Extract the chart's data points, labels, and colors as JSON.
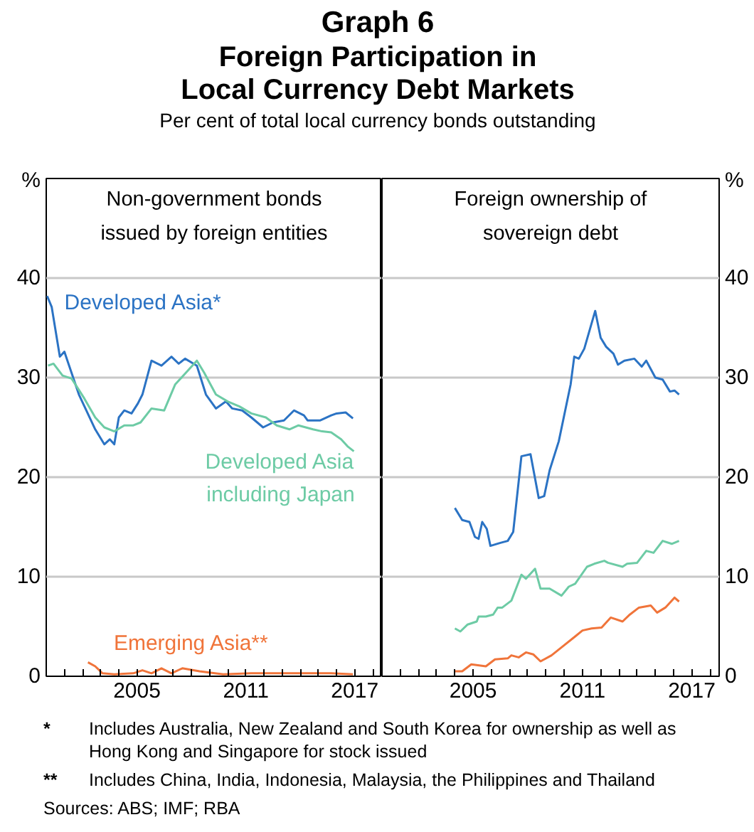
{
  "chart_data": [
    {
      "type": "other",
      "title": "Graph 6",
      "subtitle": "Foreign Participation in Local Currency Debt Markets",
      "annotations": [
        "Per cent of total local currency bonds outstanding",
        "* Includes Australia, New Zealand and South Korea for ownership as well as Hong Kong and Singapore for stock issued",
        "** Includes China, India, Indonesia, Malaysia, the Philippines and Thailand",
        "Sources: ABS; IMF; RBA"
      ]
    },
    {
      "type": "line",
      "title": "Non-government bonds issued by foreign entities",
      "xlim": [
        2000,
        2018.5
      ],
      "ylim": [
        0,
        50
      ],
      "yticks": [
        0,
        10,
        20,
        30,
        40,
        {
          "value": 50,
          "label": "%"
        }
      ],
      "xticks": [
        {
          "value": 2001,
          "label": null
        },
        {
          "value": 2002,
          "label": null
        },
        {
          "value": 2003,
          "label": null
        },
        {
          "value": 2004,
          "label": null
        },
        2005,
        {
          "value": 2006,
          "label": null
        },
        {
          "value": 2007,
          "label": null
        },
        {
          "value": 2008,
          "label": null
        },
        {
          "value": 2009,
          "label": null
        },
        {
          "value": 2010,
          "label": null
        },
        2011,
        {
          "value": 2012,
          "label": null
        },
        {
          "value": 2013,
          "label": null
        },
        {
          "value": 2014,
          "label": null
        },
        {
          "value": 2015,
          "label": null
        },
        {
          "value": 2016,
          "label": null
        },
        2017,
        {
          "value": 2018,
          "label": null
        }
      ],
      "grid": "y",
      "series": [
        {
          "name": "Developed Asia*",
          "color": "#2b73c4",
          "x": [
            2000.05,
            2000.3,
            2000.75,
            2001.0,
            2001.8,
            2002.7,
            2003.2,
            2003.5,
            2003.75,
            2004.0,
            2004.3,
            2004.7,
            2005.05,
            2005.3,
            2005.8,
            2006.35,
            2006.9,
            2007.3,
            2007.65,
            2008.3,
            2008.8,
            2009.35,
            2009.9,
            2010.25,
            2010.8,
            2011.3,
            2011.95,
            2012.5,
            2013.1,
            2013.65,
            2014.2,
            2014.4,
            2015.1,
            2015.7,
            2016.0,
            2016.5,
            2016.9
          ],
          "values": [
            38.2,
            37.1,
            32.1,
            32.6,
            28.3,
            24.8,
            23.3,
            23.8,
            23.3,
            26.0,
            26.7,
            26.4,
            27.4,
            28.3,
            31.7,
            31.2,
            32.1,
            31.4,
            31.9,
            31.2,
            28.3,
            26.9,
            27.6,
            26.9,
            26.7,
            26.0,
            25.0,
            25.5,
            25.7,
            26.7,
            26.2,
            25.7,
            25.7,
            26.2,
            26.4,
            26.5,
            25.9
          ]
        },
        {
          "name": "Developed Asia including Japan",
          "color": "#6dcba5",
          "x": [
            2000.1,
            2000.4,
            2000.9,
            2001.4,
            2002.1,
            2002.7,
            2003.2,
            2003.75,
            2004.3,
            2004.8,
            2005.2,
            2005.8,
            2006.5,
            2007.1,
            2007.8,
            2008.3,
            2008.7,
            2009.35,
            2010.0,
            2010.65,
            2011.3,
            2012.1,
            2012.7,
            2013.4,
            2013.9,
            2014.7,
            2015.2,
            2015.7,
            2016.25,
            2016.6,
            2016.95
          ],
          "values": [
            31.2,
            31.4,
            30.2,
            29.9,
            27.9,
            26.0,
            25.0,
            24.6,
            25.2,
            25.2,
            25.5,
            26.9,
            26.7,
            29.3,
            30.7,
            31.7,
            30.5,
            28.3,
            27.6,
            27.1,
            26.4,
            26.0,
            25.2,
            24.8,
            25.2,
            24.8,
            24.6,
            24.5,
            23.8,
            23.1,
            22.6
          ]
        },
        {
          "name": "Emerging Asia**",
          "color": "#f0743a",
          "x": [
            2002.3,
            2002.7,
            2003.1,
            2003.75,
            2004.8,
            2005.3,
            2005.8,
            2006.35,
            2006.9,
            2007.5,
            2008.45,
            2009.75,
            2011.3,
            2013.1,
            2014.4,
            2015.7,
            2016.9
          ],
          "values": [
            1.4,
            1.0,
            0.3,
            0.2,
            0.3,
            0.6,
            0.3,
            0.8,
            0.3,
            0.8,
            0.5,
            0.2,
            0.3,
            0.3,
            0.3,
            0.3,
            0.2
          ]
        }
      ]
    },
    {
      "type": "line",
      "title": "Foreign ownership of sovereign debt",
      "xlim": [
        2000,
        2018.5
      ],
      "ylim": [
        0,
        50
      ],
      "yticks": [
        0,
        10,
        20,
        30,
        40,
        {
          "value": 50,
          "label": "%"
        }
      ],
      "xticks": [
        {
          "value": 2001,
          "label": null
        },
        {
          "value": 2002,
          "label": null
        },
        {
          "value": 2003,
          "label": null
        },
        {
          "value": 2004,
          "label": null
        },
        2005,
        {
          "value": 2006,
          "label": null
        },
        {
          "value": 2007,
          "label": null
        },
        {
          "value": 2008,
          "label": null
        },
        {
          "value": 2009,
          "label": null
        },
        {
          "value": 2010,
          "label": null
        },
        2011,
        {
          "value": 2012,
          "label": null
        },
        {
          "value": 2013,
          "label": null
        },
        {
          "value": 2014,
          "label": null
        },
        {
          "value": 2015,
          "label": null
        },
        {
          "value": 2016,
          "label": null
        },
        2017,
        {
          "value": 2018,
          "label": null
        }
      ],
      "grid": "y",
      "series": [
        {
          "color": "#2b73c4",
          "x": [
            2004.0,
            2004.4,
            2004.8,
            2005.1,
            2005.3,
            2005.5,
            2005.75,
            2005.95,
            2006.5,
            2006.9,
            2007.2,
            2007.65,
            2008.15,
            2008.6,
            2008.9,
            2009.2,
            2009.7,
            2010.35,
            2010.55,
            2010.8,
            2011.1,
            2011.7,
            2012.0,
            2012.3,
            2012.7,
            2012.95,
            2013.3,
            2013.85,
            2014.25,
            2014.5,
            2015.0,
            2015.4,
            2015.8,
            2016.05,
            2016.3
          ],
          "values": [
            16.9,
            15.7,
            15.5,
            14.0,
            13.8,
            15.5,
            14.8,
            13.1,
            13.4,
            13.6,
            14.5,
            22.1,
            22.3,
            17.9,
            18.1,
            20.7,
            23.6,
            29.3,
            32.1,
            31.9,
            32.9,
            36.7,
            34.0,
            33.1,
            32.4,
            31.3,
            31.7,
            31.9,
            31.1,
            31.7,
            30.0,
            29.8,
            28.6,
            28.7,
            28.3
          ]
        },
        {
          "color": "#6dcba5",
          "x": [
            2004.0,
            2004.3,
            2004.7,
            2005.2,
            2005.3,
            2005.7,
            2006.1,
            2006.35,
            2006.6,
            2007.1,
            2007.65,
            2007.9,
            2008.4,
            2008.7,
            2009.2,
            2009.85,
            2010.25,
            2010.6,
            2011.25,
            2011.65,
            2012.2,
            2012.4,
            2013.2,
            2013.45,
            2014.0,
            2014.5,
            2014.9,
            2015.4,
            2015.9,
            2016.3
          ],
          "values": [
            4.8,
            4.5,
            5.2,
            5.5,
            6.0,
            6.0,
            6.2,
            6.9,
            6.9,
            7.6,
            10.2,
            9.8,
            10.8,
            8.8,
            8.8,
            8.1,
            9.0,
            9.3,
            11.0,
            11.3,
            11.6,
            11.4,
            11.0,
            11.3,
            11.4,
            12.6,
            12.4,
            13.6,
            13.3,
            13.6
          ]
        },
        {
          "color": "#f0743a",
          "x": [
            2004.0,
            2004.4,
            2004.9,
            2005.7,
            2006.2,
            2006.9,
            2007.1,
            2007.5,
            2007.9,
            2008.3,
            2008.7,
            2009.3,
            2009.85,
            2010.6,
            2011.0,
            2011.5,
            2012.05,
            2012.55,
            2013.2,
            2013.6,
            2014.1,
            2014.75,
            2015.1,
            2015.55,
            2016.05,
            2016.3
          ],
          "values": [
            0.5,
            0.5,
            1.2,
            1.0,
            1.7,
            1.8,
            2.1,
            1.9,
            2.4,
            2.2,
            1.5,
            2.1,
            2.9,
            4.0,
            4.6,
            4.8,
            4.9,
            5.9,
            5.5,
            6.2,
            6.9,
            7.1,
            6.4,
            6.9,
            7.9,
            7.5
          ]
        }
      ]
    }
  ]
}
